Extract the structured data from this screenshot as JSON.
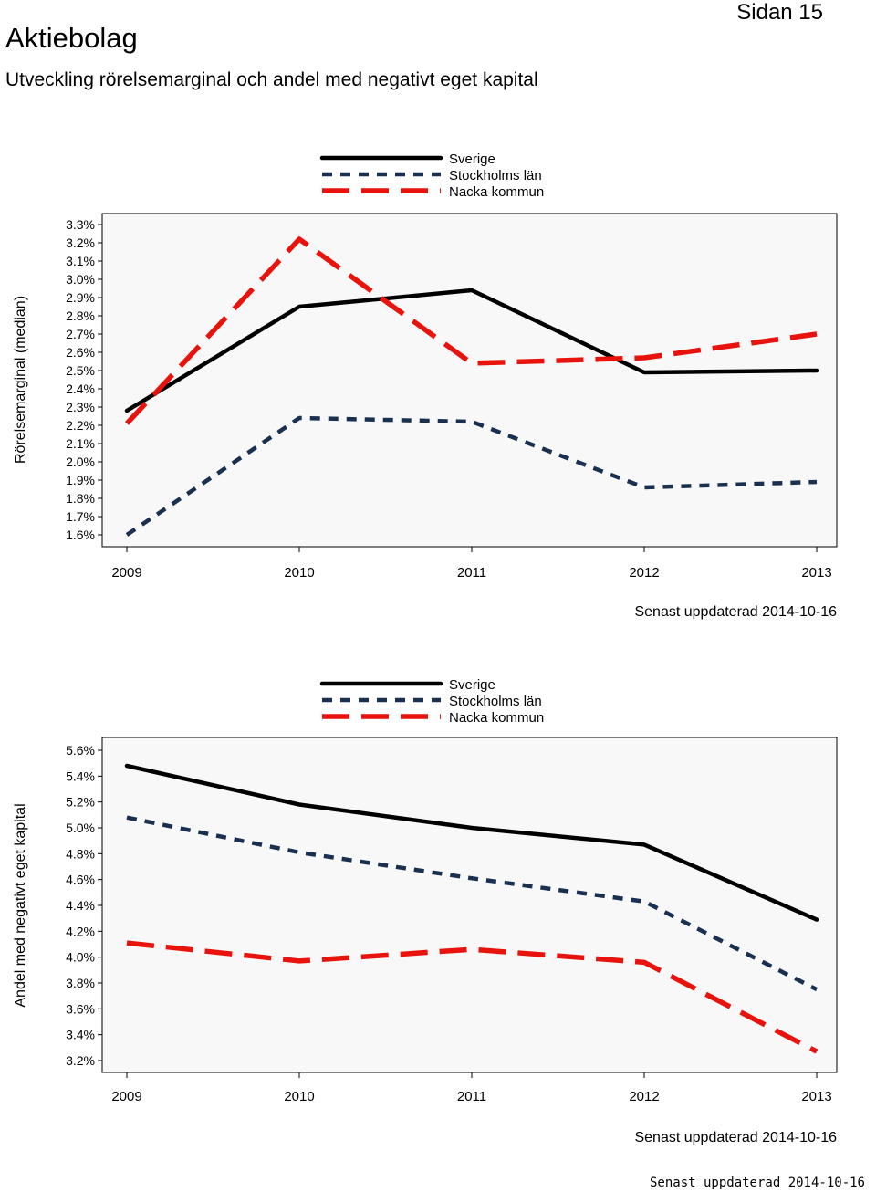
{
  "header": {
    "title": "Aktiebolag",
    "page": "Sidan 15",
    "subtitle": "Utveckling rörelsemarginal och andel med negativt eget kapital"
  },
  "footer": {
    "updated": "Senast uppdaterad 2014-10-16"
  },
  "colors": {
    "sverige": "#000000",
    "stockholm": "#1a3050",
    "nacka": "#e8130c",
    "plot_bg": "#f8f8f8"
  },
  "chart_data": [
    {
      "type": "line",
      "title": "",
      "ylabel": "Rörelsemarginal (median)",
      "xlabel": "",
      "x": [
        "2009",
        "2010",
        "2011",
        "2012",
        "2013"
      ],
      "ylim": [
        1.6,
        3.3
      ],
      "yticks": [
        "3.3%",
        "3.2%",
        "3.1%",
        "3.0%",
        "2.9%",
        "2.8%",
        "2.7%",
        "2.6%",
        "2.5%",
        "2.4%",
        "2.3%",
        "2.2%",
        "2.1%",
        "2.0%",
        "1.9%",
        "1.8%",
        "1.7%",
        "1.6%"
      ],
      "legend": [
        "Sverige",
        "Stockholms län",
        "Nacka kommun"
      ],
      "series": [
        {
          "name": "Sverige",
          "values": [
            2.28,
            2.85,
            2.94,
            2.49,
            2.5
          ]
        },
        {
          "name": "Stockholms län",
          "values": [
            1.6,
            2.24,
            2.22,
            1.86,
            1.89
          ]
        },
        {
          "name": "Nacka kommun",
          "values": [
            2.21,
            3.22,
            2.54,
            2.57,
            2.7
          ]
        }
      ],
      "updated": "Senast uppdaterad 2014-10-16"
    },
    {
      "type": "line",
      "title": "",
      "ylabel": "Andel med negativt eget kapital",
      "xlabel": "",
      "x": [
        "2009",
        "2010",
        "2011",
        "2012",
        "2013"
      ],
      "ylim": [
        3.2,
        5.6
      ],
      "yticks": [
        "5.6%",
        "5.4%",
        "5.2%",
        "5.0%",
        "4.8%",
        "4.6%",
        "4.4%",
        "4.2%",
        "4.0%",
        "3.8%",
        "3.6%",
        "3.4%",
        "3.2%"
      ],
      "legend": [
        "Sverige",
        "Stockholms län",
        "Nacka kommun"
      ],
      "series": [
        {
          "name": "Sverige",
          "values": [
            5.48,
            5.18,
            5.0,
            4.87,
            4.29
          ]
        },
        {
          "name": "Stockholms län",
          "values": [
            5.08,
            4.81,
            4.61,
            4.43,
            3.75
          ]
        },
        {
          "name": "Nacka kommun",
          "values": [
            4.11,
            3.97,
            4.06,
            3.96,
            3.27
          ]
        }
      ],
      "updated": "Senast uppdaterad 2014-10-16"
    }
  ]
}
